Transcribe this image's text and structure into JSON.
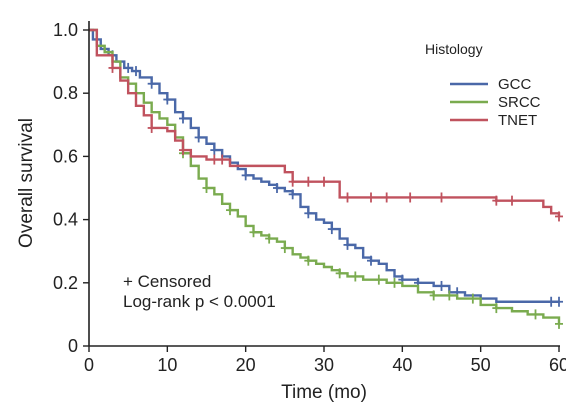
{
  "chart_data": {
    "type": "line",
    "title": "",
    "xlabel": "Time (mo)",
    "ylabel": "Overall survival",
    "xlim": [
      0,
      60
    ],
    "ylim": [
      0,
      1.0
    ],
    "x_ticks": [
      "0",
      "10",
      "20",
      "30",
      "40",
      "50",
      "60"
    ],
    "y_ticks": [
      "0",
      "0.2",
      "0.4",
      "0.6",
      "0.8",
      "1.0"
    ],
    "grid": false,
    "legend": {
      "title": "Histology",
      "placement": "top-right"
    },
    "annotations": [
      "+ Censored",
      "Log-rank p < 0.0001"
    ],
    "series": [
      {
        "name": "GCC",
        "color": "#4a68a8",
        "steps": [
          [
            0,
            1.0
          ],
          [
            0.5,
            0.97
          ],
          [
            1.5,
            0.94
          ],
          [
            2.5,
            0.92
          ],
          [
            3.5,
            0.9
          ],
          [
            4.5,
            0.88
          ],
          [
            5.5,
            0.87
          ],
          [
            6.5,
            0.85
          ],
          [
            8,
            0.83
          ],
          [
            9,
            0.8
          ],
          [
            10,
            0.78
          ],
          [
            11,
            0.74
          ],
          [
            12,
            0.72
          ],
          [
            13,
            0.69
          ],
          [
            14,
            0.66
          ],
          [
            15,
            0.64
          ],
          [
            16,
            0.62
          ],
          [
            17,
            0.6
          ],
          [
            18,
            0.58
          ],
          [
            19,
            0.56
          ],
          [
            20,
            0.54
          ],
          [
            21,
            0.53
          ],
          [
            22,
            0.52
          ],
          [
            23,
            0.51
          ],
          [
            24,
            0.5
          ],
          [
            25,
            0.49
          ],
          [
            26,
            0.48
          ],
          [
            27,
            0.44
          ],
          [
            28,
            0.42
          ],
          [
            29,
            0.4
          ],
          [
            30,
            0.39
          ],
          [
            31,
            0.37
          ],
          [
            32,
            0.34
          ],
          [
            33,
            0.32
          ],
          [
            34,
            0.31
          ],
          [
            35,
            0.28
          ],
          [
            36,
            0.27
          ],
          [
            37,
            0.26
          ],
          [
            38,
            0.24
          ],
          [
            39,
            0.22
          ],
          [
            40,
            0.21
          ],
          [
            42,
            0.2
          ],
          [
            44,
            0.19
          ],
          [
            46,
            0.17
          ],
          [
            48,
            0.16
          ],
          [
            50,
            0.15
          ],
          [
            52,
            0.14
          ],
          [
            60,
            0.14
          ]
        ],
        "censored_x": [
          3,
          5,
          6,
          8,
          10,
          12,
          14,
          16,
          20,
          24,
          26,
          28,
          31,
          33,
          36,
          40,
          42,
          45,
          47,
          59,
          60
        ]
      },
      {
        "name": "SRCC",
        "color": "#7aab4f",
        "steps": [
          [
            0,
            1.0
          ],
          [
            1,
            0.95
          ],
          [
            2,
            0.93
          ],
          [
            3,
            0.9
          ],
          [
            4,
            0.85
          ],
          [
            5,
            0.83
          ],
          [
            6,
            0.8
          ],
          [
            7,
            0.77
          ],
          [
            8,
            0.74
          ],
          [
            9,
            0.72
          ],
          [
            10,
            0.7
          ],
          [
            11,
            0.66
          ],
          [
            12,
            0.61
          ],
          [
            13,
            0.57
          ],
          [
            14,
            0.53
          ],
          [
            15,
            0.5
          ],
          [
            16,
            0.48
          ],
          [
            17,
            0.45
          ],
          [
            18,
            0.43
          ],
          [
            19,
            0.41
          ],
          [
            20,
            0.38
          ],
          [
            21,
            0.36
          ],
          [
            22,
            0.35
          ],
          [
            23,
            0.34
          ],
          [
            24,
            0.33
          ],
          [
            25,
            0.31
          ],
          [
            26,
            0.29
          ],
          [
            27,
            0.28
          ],
          [
            28,
            0.27
          ],
          [
            29,
            0.26
          ],
          [
            30,
            0.25
          ],
          [
            31,
            0.24
          ],
          [
            32,
            0.23
          ],
          [
            33,
            0.22
          ],
          [
            35,
            0.21
          ],
          [
            38,
            0.2
          ],
          [
            40,
            0.19
          ],
          [
            42,
            0.17
          ],
          [
            44,
            0.16
          ],
          [
            47,
            0.15
          ],
          [
            50,
            0.13
          ],
          [
            52,
            0.12
          ],
          [
            54,
            0.11
          ],
          [
            56,
            0.1
          ],
          [
            58,
            0.09
          ],
          [
            60,
            0.07
          ]
        ],
        "censored_x": [
          12,
          15,
          18,
          21,
          23,
          25,
          28,
          32,
          34,
          37,
          39,
          44,
          46,
          49,
          52,
          57,
          60
        ]
      },
      {
        "name": "TNET",
        "color": "#c0525e",
        "steps": [
          [
            0,
            1.0
          ],
          [
            1,
            0.92
          ],
          [
            3,
            0.88
          ],
          [
            4,
            0.84
          ],
          [
            5,
            0.8
          ],
          [
            6,
            0.76
          ],
          [
            7,
            0.73
          ],
          [
            8,
            0.69
          ],
          [
            10,
            0.68
          ],
          [
            11,
            0.65
          ],
          [
            12,
            0.62
          ],
          [
            13,
            0.6
          ],
          [
            15,
            0.59
          ],
          [
            18,
            0.57
          ],
          [
            25,
            0.55
          ],
          [
            26,
            0.52
          ],
          [
            32,
            0.47
          ],
          [
            52,
            0.46
          ],
          [
            58,
            0.44
          ],
          [
            59,
            0.42
          ],
          [
            60,
            0.41
          ]
        ],
        "censored_x": [
          3,
          8,
          12,
          16,
          17,
          26,
          28,
          30,
          33,
          36,
          38,
          41,
          45,
          52,
          54,
          60
        ]
      }
    ]
  }
}
